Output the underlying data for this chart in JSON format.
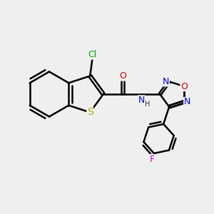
{
  "bg_color": "#efefef",
  "bond_color": "#000000",
  "bond_width": 1.8,
  "atom_colors": {
    "C": "#000000",
    "N": "#0000cc",
    "O": "#cc0000",
    "S": "#bbaa00",
    "Cl": "#00aa00",
    "F": "#cc00cc",
    "H": "#333333"
  },
  "font_size": 9
}
